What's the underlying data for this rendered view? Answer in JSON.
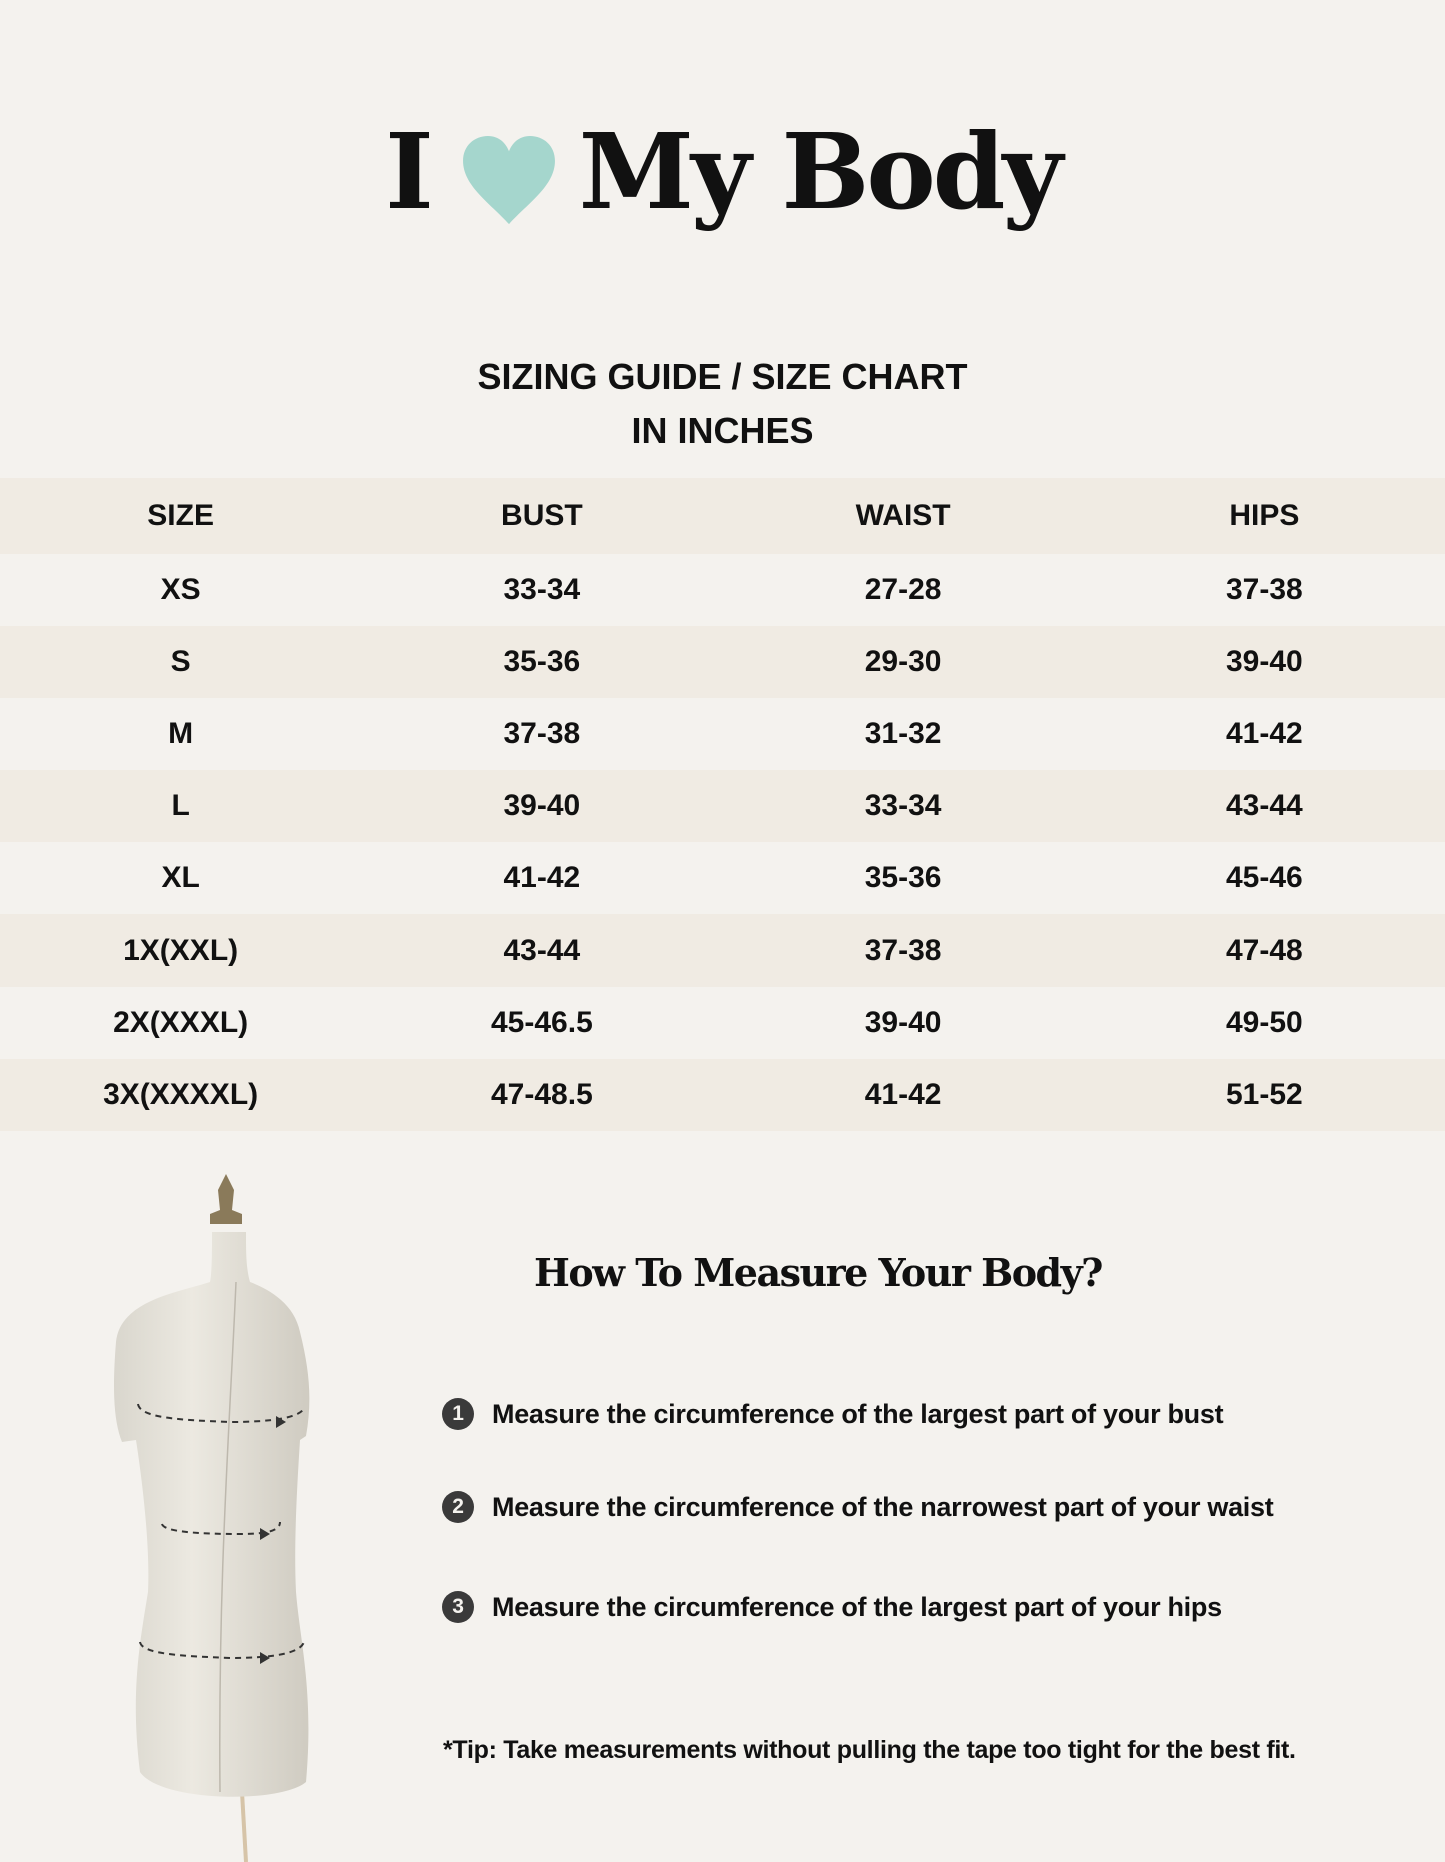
{
  "header": {
    "title_left": "I",
    "title_right": "My Body",
    "heart_icon": "heart-icon",
    "heart_color": "#a5d6cd"
  },
  "subtitle": {
    "line1": "SIZING GUIDE / SIZE CHART",
    "line2": "IN INCHES"
  },
  "table": {
    "columns": [
      "SIZE",
      "BUST",
      "WAIST",
      "HIPS"
    ],
    "rows": [
      [
        "XS",
        "33-34",
        "27-28",
        "37-38"
      ],
      [
        "S",
        "35-36",
        "29-30",
        "39-40"
      ],
      [
        "M",
        "37-38",
        "31-32",
        "41-42"
      ],
      [
        "L",
        "39-40",
        "33-34",
        "43-44"
      ],
      [
        "XL",
        "41-42",
        "35-36",
        "45-46"
      ],
      [
        "1X(XXL)",
        "43-44",
        "37-38",
        "47-48"
      ],
      [
        "2X(XXXL)",
        "45-46.5",
        "39-40",
        "49-50"
      ],
      [
        "3X(XXXXL)",
        "47-48.5",
        "41-42",
        "51-52"
      ]
    ],
    "band_color": "#f0ebe3"
  },
  "measure": {
    "heading": "How To Measure Your Body?",
    "steps": [
      {
        "num": "1",
        "text": "Measure the circumference of the largest part of your bust"
      },
      {
        "num": "2",
        "text": "Measure the circumference of the narrowest part of your waist"
      },
      {
        "num": "3",
        "text": "Measure the circumference of the largest part of your hips"
      }
    ],
    "tip": "*Tip: Take measurements without pulling the tape too tight for the best fit."
  }
}
